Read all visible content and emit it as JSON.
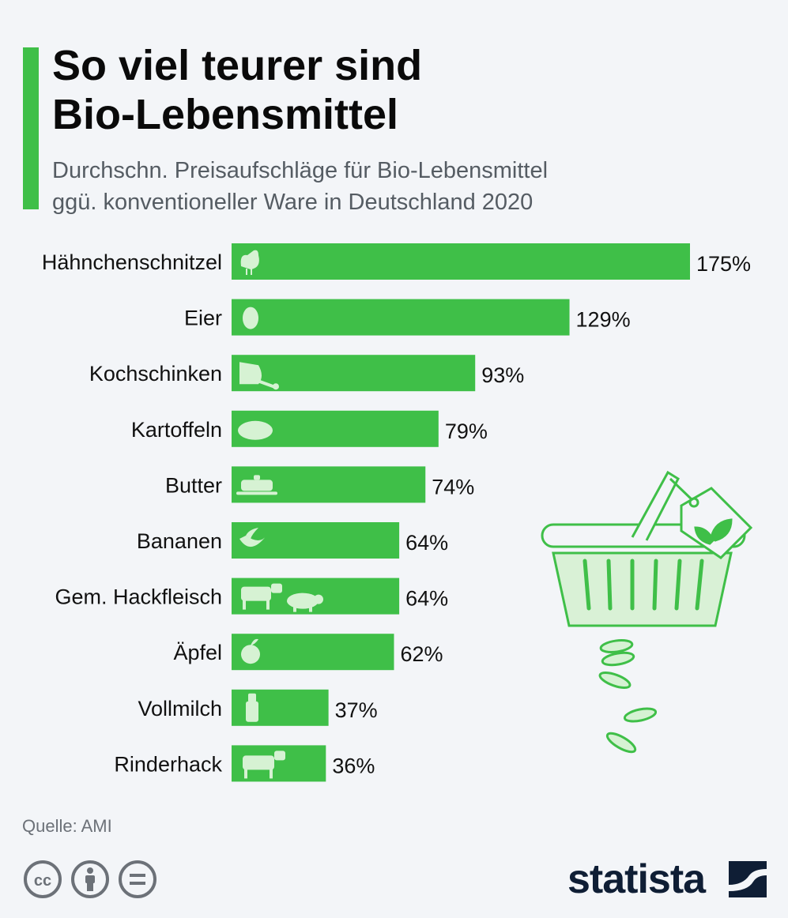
{
  "header": {
    "title_line1": "So viel teurer sind",
    "title_line2": "Bio-Lebensmittel",
    "subtitle_line1": "Durchschn. Preisaufschläge für Bio-Lebensmittel",
    "subtitle_line2": "ggü. konventioneller Ware in Deutschland 2020"
  },
  "chart_data": {
    "type": "bar",
    "orientation": "horizontal",
    "categories": [
      "Hähnchenschnitzel",
      "Eier",
      "Kochschinken",
      "Kartoffeln",
      "Butter",
      "Bananen",
      "Gem. Hackfleisch",
      "Äpfel",
      "Vollmilch",
      "Rinderhack"
    ],
    "values": [
      175,
      129,
      93,
      79,
      74,
      64,
      64,
      62,
      37,
      36
    ],
    "value_labels": [
      "175%",
      "129%",
      "93%",
      "79%",
      "74%",
      "64%",
      "64%",
      "62%",
      "37%",
      "36%"
    ],
    "icons": [
      "chicken-icon",
      "egg-icon",
      "ham-icon",
      "potato-icon",
      "butter-dish-icon",
      "banana-icon",
      "cow-and-pig-icon",
      "apple-icon",
      "milk-bottle-icon",
      "cow-icon"
    ],
    "unit": "%",
    "xlim": [
      0,
      175
    ],
    "grid": false,
    "legend": "none",
    "bar_color": "#3fbf48"
  },
  "footer": {
    "source": "Quelle: AMI",
    "license_icons": [
      "creative-commons-icon",
      "attribution-icon",
      "no-derivatives-icon"
    ],
    "brand": "statista",
    "brand_color": "#0f1e35"
  },
  "colors": {
    "accent": "#3fbf48",
    "icon_light": "#d6f2d3",
    "background": "#f3f5f8"
  }
}
